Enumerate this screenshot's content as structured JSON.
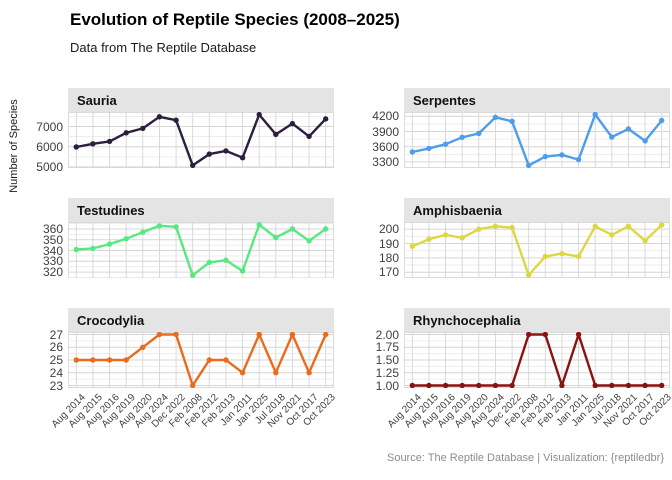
{
  "page": {
    "title": "Evolution of Reptile Species (2008–2025)",
    "subtitle": "Data from The Reptile Database",
    "y_axis_label": "Number of Species",
    "caption": "Source: The Reptile Database | Visualization: {reptiledbr}"
  },
  "chart_data": {
    "type": "line",
    "layout": "facet grid 3 rows x 2 cols, shared x axis, free y axes, grid on, no legend",
    "title": "Evolution of Reptile Species (2008–2025)",
    "subtitle": "Data from The Reptile Database",
    "ylabel": "Number of Species",
    "caption": "Source: The Reptile Database | Visualization: {reptiledbr}",
    "x_note": "categorical x axis sorted alphabetically, labels rotated 45deg, shown under bottom row only",
    "categories": [
      "Aug 2014",
      "Aug 2015",
      "Aug 2016",
      "Aug 2019",
      "Aug 2020",
      "Aug 2024",
      "Dec 2022",
      "Feb 2008",
      "Feb 2012",
      "Feb 2013",
      "Jan 2011",
      "Jan 2025",
      "Jul 2018",
      "Nov 2021",
      "Oct 2017",
      "Oct 2023"
    ],
    "facets": [
      {
        "name": "Sauria",
        "color": "#2d1e3e",
        "values": [
          5987,
          6145,
          6263,
          6687,
          6905,
          7479,
          7310,
          5079,
          5634,
          5796,
          5461,
          7589,
          6610,
          7144,
          6512,
          7374
        ],
        "ytick_labels": [
          "5000",
          "6000",
          "7000"
        ],
        "ytick_values": [
          5000,
          6000,
          7000
        ],
        "ylim": [
          4950,
          7715
        ]
      },
      {
        "name": "Serpentes",
        "color": "#4c9eea",
        "values": [
          3496,
          3567,
          3649,
          3786,
          3861,
          4181,
          4102,
          3232,
          3404,
          3438,
          3345,
          4235,
          3789,
          3951,
          3715,
          4117
        ],
        "ytick_labels": [
          "3300",
          "3600",
          "3900",
          "4200"
        ],
        "ytick_values": [
          3300,
          3600,
          3900,
          4200
        ],
        "ylim": [
          3180,
          4285
        ]
      },
      {
        "name": "Testudines",
        "color": "#57e97f",
        "values": [
          341,
          342,
          346,
          351,
          357,
          363,
          362,
          317,
          329,
          331,
          321,
          364,
          352,
          360,
          349,
          360
        ],
        "ytick_labels": [
          "320",
          "330",
          "340",
          "350",
          "360"
        ],
        "ytick_values": [
          320,
          330,
          340,
          350,
          360
        ],
        "ylim": [
          314.5,
          366.5
        ]
      },
      {
        "name": "Amphisbaenia",
        "color": "#dcd843",
        "values": [
          188,
          193,
          196,
          194,
          200,
          202,
          201,
          168,
          181,
          183,
          181,
          202,
          196,
          202,
          192,
          203
        ],
        "ytick_labels": [
          "170",
          "180",
          "190",
          "200"
        ],
        "ytick_values": [
          170,
          180,
          190,
          200
        ],
        "ylim": [
          166,
          205
        ]
      },
      {
        "name": "Crocodylia",
        "color": "#eb6a1c",
        "values": [
          25,
          25,
          25,
          25,
          26,
          27,
          27,
          23,
          25,
          25,
          24,
          27,
          24,
          27,
          24,
          27
        ],
        "ytick_labels": [
          "23",
          "24",
          "25",
          "26",
          "27"
        ],
        "ytick_values": [
          23,
          24,
          25,
          26,
          27
        ],
        "ylim": [
          22.8,
          27.2
        ]
      },
      {
        "name": "Rhynchocephalia",
        "color": "#8b1212",
        "values": [
          1,
          1,
          1,
          1,
          1,
          1,
          1,
          2,
          2,
          1,
          2,
          1,
          1,
          1,
          1,
          1
        ],
        "ytick_labels": [
          "1.00",
          "1.25",
          "1.50",
          "1.75",
          "2.00"
        ],
        "ytick_values": [
          1.0,
          1.25,
          1.5,
          1.75,
          2.0
        ],
        "ylim": [
          0.95,
          2.05
        ]
      }
    ]
  }
}
